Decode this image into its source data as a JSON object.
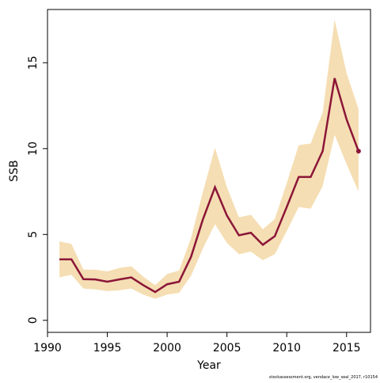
{
  "chart_data": {
    "type": "line",
    "xlabel": "Year",
    "ylabel": "SSB",
    "footnote": "stockassessment.org, vendace_low_seal_2017, r10154",
    "x": [
      1991,
      1992,
      1993,
      1994,
      1995,
      1996,
      1997,
      1998,
      1999,
      2000,
      2001,
      2002,
      2003,
      2004,
      2005,
      2006,
      2007,
      2008,
      2009,
      2010,
      2011,
      2012,
      2013,
      2014,
      2015,
      2016
    ],
    "values": [
      3.55,
      3.55,
      2.4,
      2.38,
      2.25,
      2.38,
      2.5,
      2.05,
      1.65,
      2.1,
      2.25,
      3.7,
      5.9,
      7.75,
      6.1,
      4.95,
      5.1,
      4.4,
      4.9,
      6.6,
      8.35,
      8.35,
      9.85,
      14.1,
      11.7,
      9.85
    ],
    "upper": [
      4.6,
      4.45,
      2.95,
      2.95,
      2.85,
      3.05,
      3.15,
      2.55,
      2.05,
      2.7,
      2.9,
      4.8,
      7.5,
      10.05,
      7.75,
      6.0,
      6.15,
      5.3,
      5.9,
      8.0,
      10.2,
      10.3,
      12.1,
      17.5,
      14.4,
      12.3
    ],
    "lower": [
      2.5,
      2.65,
      1.85,
      1.8,
      1.7,
      1.75,
      1.85,
      1.5,
      1.25,
      1.5,
      1.6,
      2.6,
      4.2,
      5.6,
      4.5,
      3.85,
      4.0,
      3.5,
      3.85,
      5.2,
      6.6,
      6.5,
      7.8,
      10.8,
      9.1,
      7.5
    ],
    "color": "#8b1538",
    "band_color": "#f5deb3",
    "xlim": [
      1990,
      2017
    ],
    "xticks": [
      1990,
      1995,
      2000,
      2005,
      2010,
      2015
    ],
    "ylim": [
      -0.7,
      18.1
    ],
    "yticks": [
      0,
      5,
      10,
      15
    ]
  }
}
